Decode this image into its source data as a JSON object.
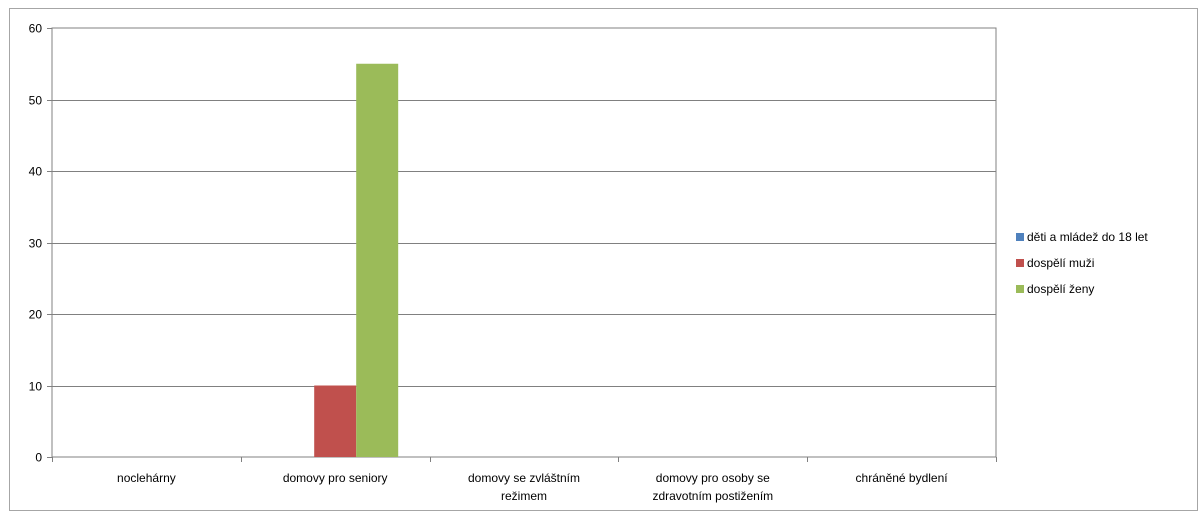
{
  "chart_data": {
    "type": "bar",
    "title": "",
    "xlabel": "",
    "ylabel": "",
    "categories": [
      [
        "noclehárny"
      ],
      [
        "domovy pro seniory"
      ],
      [
        "domovy se zvláštním",
        "režimem"
      ],
      [
        "domovy pro osoby se",
        "zdravotním postižením"
      ],
      [
        "chráněné bydlení"
      ]
    ],
    "series": [
      {
        "name": "děti a mládež do 18 let",
        "color": "#4f81bd",
        "values": [
          0,
          0,
          0,
          0,
          0
        ]
      },
      {
        "name": "dospělí muži",
        "color": "#c0504d",
        "values": [
          0,
          10,
          0,
          0,
          0
        ]
      },
      {
        "name": "dospělí ženy",
        "color": "#9bbb59",
        "values": [
          0,
          55,
          0,
          0,
          0
        ]
      }
    ],
    "ylim": [
      0,
      60
    ],
    "yticks": [
      0,
      10,
      20,
      30,
      40,
      50,
      60
    ],
    "grid": true,
    "legend_position": "right"
  }
}
